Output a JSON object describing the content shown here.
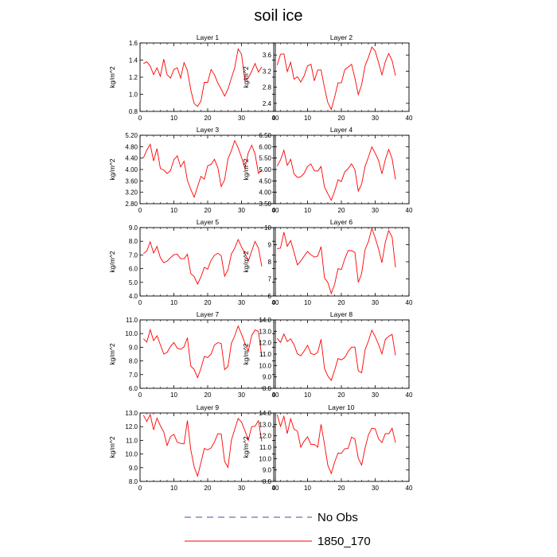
{
  "title": "soil ice",
  "legend": [
    {
      "label": "No Obs",
      "color": "#4a4a9a",
      "dash": "8,6"
    },
    {
      "label": "1850_170",
      "color": "#ff0000",
      "dash": ""
    }
  ],
  "chart_data": [
    {
      "type": "line",
      "title": "Layer 1",
      "ylabel": "kg/m^2",
      "xlim": [
        0,
        40
      ],
      "ylim": [
        0.8,
        1.6
      ],
      "yticks": [
        "0.8",
        "1.0",
        "1.2",
        "1.4",
        "1.6"
      ],
      "xticks": [
        "0",
        "10",
        "20",
        "30",
        "40"
      ],
      "series": [
        {
          "name": "1850_170",
          "color": "#ff0000",
          "x": [
            1,
            2,
            3,
            4,
            5,
            6,
            7,
            8,
            9,
            10,
            11,
            12,
            13,
            14,
            15,
            16,
            17,
            18,
            19,
            20,
            21,
            22,
            23,
            24,
            25,
            26,
            27,
            28,
            29,
            30,
            31,
            32,
            33,
            34,
            35,
            36
          ],
          "y": [
            1.36,
            1.38,
            1.33,
            1.23,
            1.31,
            1.21,
            1.41,
            1.23,
            1.19,
            1.29,
            1.31,
            1.19,
            1.37,
            1.28,
            1.05,
            0.89,
            0.86,
            0.92,
            1.14,
            1.14,
            1.29,
            1.23,
            1.13,
            1.06,
            0.98,
            1.06,
            1.19,
            1.31,
            1.53,
            1.47,
            1.16,
            1.19,
            1.27,
            1.36,
            1.26,
            1.32
          ]
        }
      ]
    },
    {
      "type": "line",
      "title": "Layer 2",
      "ylabel": "kg/m^2",
      "xlim": [
        0,
        40
      ],
      "ylim": [
        2.2,
        3.9
      ],
      "yticks": [
        "2.4",
        "2.8",
        "3.2",
        "3.6"
      ],
      "xticks": [
        "0",
        "10",
        "20",
        "30",
        "40"
      ],
      "series": [
        {
          "name": "1850_170",
          "color": "#ff0000",
          "x": [
            1,
            2,
            3,
            4,
            5,
            6,
            7,
            8,
            9,
            10,
            11,
            12,
            13,
            14,
            15,
            16,
            17,
            18,
            19,
            20,
            21,
            22,
            23,
            24,
            25,
            26,
            27,
            28,
            29,
            30,
            31,
            32,
            33,
            34,
            35,
            36
          ],
          "y": [
            3.35,
            3.62,
            3.63,
            3.19,
            3.42,
            3.0,
            3.06,
            2.93,
            3.09,
            3.33,
            3.37,
            2.96,
            3.23,
            3.23,
            2.79,
            2.42,
            2.25,
            2.55,
            2.91,
            2.91,
            3.24,
            3.3,
            3.37,
            3.03,
            2.62,
            2.86,
            3.33,
            3.54,
            3.8,
            3.7,
            3.41,
            3.11,
            3.44,
            3.64,
            3.46,
            3.09
          ]
        }
      ]
    },
    {
      "type": "line",
      "title": "Layer 3",
      "ylabel": "kg/m^2",
      "xlim": [
        0,
        40
      ],
      "ylim": [
        2.8,
        5.2
      ],
      "yticks": [
        "2.80",
        "3.20",
        "3.60",
        "4.00",
        "4.40",
        "4.80",
        "5.20"
      ],
      "xticks": [
        "0",
        "10",
        "20",
        "30",
        "40"
      ],
      "series": [
        {
          "name": "1850_170",
          "color": "#ff0000",
          "x": [
            1,
            2,
            3,
            4,
            5,
            6,
            7,
            8,
            9,
            10,
            11,
            12,
            13,
            14,
            15,
            16,
            17,
            18,
            19,
            20,
            21,
            22,
            23,
            24,
            25,
            26,
            27,
            28,
            29,
            30,
            31,
            32,
            33,
            34,
            35,
            36
          ],
          "y": [
            4.41,
            4.68,
            4.88,
            4.3,
            4.73,
            4.04,
            3.98,
            3.86,
            3.96,
            4.34,
            4.48,
            4.09,
            4.29,
            3.62,
            3.3,
            3.03,
            3.4,
            3.76,
            3.66,
            4.13,
            4.18,
            4.36,
            4.06,
            3.4,
            3.64,
            4.37,
            4.66,
            5.01,
            4.76,
            4.43,
            4.04,
            4.58,
            4.85,
            4.55,
            3.86,
            3.98
          ]
        }
      ]
    },
    {
      "type": "line",
      "title": "Layer 4",
      "ylabel": "kg/m^2",
      "xlim": [
        0,
        40
      ],
      "ylim": [
        3.5,
        6.5
      ],
      "yticks": [
        "3.50",
        "4.00",
        "4.50",
        "5.00",
        "5.50",
        "6.00",
        "6.50"
      ],
      "xticks": [
        "0",
        "10",
        "20",
        "30",
        "40"
      ],
      "series": [
        {
          "name": "1850_170",
          "color": "#ff0000",
          "x": [
            1,
            2,
            3,
            4,
            5,
            6,
            7,
            8,
            9,
            10,
            11,
            12,
            13,
            14,
            15,
            16,
            17,
            18,
            19,
            20,
            21,
            22,
            23,
            24,
            25,
            26,
            27,
            28,
            29,
            30,
            31,
            32,
            33,
            34,
            35,
            36
          ],
          "y": [
            5.15,
            5.42,
            5.84,
            5.18,
            5.45,
            4.8,
            4.65,
            4.68,
            4.84,
            5.14,
            5.24,
            4.94,
            4.93,
            5.13,
            4.23,
            3.94,
            3.65,
            4.04,
            4.55,
            4.47,
            4.9,
            5.04,
            5.25,
            4.99,
            4.05,
            4.36,
            5.14,
            5.54,
            5.99,
            5.72,
            5.39,
            4.81,
            5.44,
            5.88,
            5.47,
            4.56
          ]
        }
      ]
    },
    {
      "type": "line",
      "title": "Layer 5",
      "ylabel": "kg/m^2",
      "xlim": [
        0,
        40
      ],
      "ylim": [
        4.0,
        9.0
      ],
      "yticks": [
        "4.0",
        "5.0",
        "6.0",
        "7.0",
        "8.0",
        "9.0"
      ],
      "xticks": [
        "0",
        "10",
        "20",
        "30",
        "40"
      ],
      "series": [
        {
          "name": "1850_170",
          "color": "#ff0000",
          "x": [
            1,
            2,
            3,
            4,
            5,
            6,
            7,
            8,
            9,
            10,
            11,
            12,
            13,
            14,
            15,
            16,
            17,
            18,
            19,
            20,
            21,
            22,
            23,
            24,
            25,
            26,
            27,
            28,
            29,
            30,
            31,
            32,
            33,
            34,
            35,
            36
          ],
          "y": [
            7.1,
            7.29,
            7.96,
            7.14,
            7.62,
            6.8,
            6.43,
            6.55,
            6.8,
            7.02,
            7.05,
            6.73,
            6.72,
            7.05,
            5.64,
            5.41,
            4.87,
            5.39,
            6.1,
            5.96,
            6.62,
            6.97,
            7.12,
            6.95,
            5.45,
            5.91,
            7.07,
            7.5,
            8.13,
            7.58,
            7.14,
            6.54,
            7.28,
            7.99,
            7.5,
            6.16
          ]
        }
      ]
    },
    {
      "type": "line",
      "title": "Layer 6",
      "ylabel": "kg/m^2",
      "xlim": [
        0,
        40
      ],
      "ylim": [
        6,
        10
      ],
      "yticks": [
        "6",
        "7",
        "8",
        "9",
        "10"
      ],
      "xticks": [
        "0",
        "10",
        "20",
        "30",
        "40"
      ],
      "series": [
        {
          "name": "1850_170",
          "color": "#ff0000",
          "x": [
            1,
            2,
            3,
            4,
            5,
            6,
            7,
            8,
            9,
            10,
            11,
            12,
            13,
            14,
            15,
            16,
            17,
            18,
            19,
            20,
            21,
            22,
            23,
            24,
            25,
            26,
            27,
            28,
            29,
            30,
            31,
            32,
            33,
            34,
            35,
            36
          ],
          "y": [
            8.76,
            8.8,
            9.73,
            8.91,
            9.24,
            8.56,
            7.82,
            8.04,
            8.34,
            8.6,
            8.41,
            8.28,
            8.33,
            8.89,
            7.06,
            6.79,
            6.15,
            6.68,
            7.6,
            7.55,
            8.17,
            8.65,
            8.65,
            8.55,
            6.79,
            7.32,
            8.71,
            9.18,
            9.96,
            9.4,
            8.74,
            7.95,
            9.16,
            9.83,
            9.44,
            7.67
          ]
        }
      ]
    },
    {
      "type": "line",
      "title": "Layer 7",
      "ylabel": "kg/m^2",
      "xlim": [
        0,
        40
      ],
      "ylim": [
        6.0,
        11.0
      ],
      "yticks": [
        "6.0",
        "7.0",
        "8.0",
        "9.0",
        "10.0",
        "11.0"
      ],
      "xticks": [
        "0",
        "10",
        "20",
        "30",
        "40"
      ],
      "series": [
        {
          "name": "1850_170",
          "color": "#ff0000",
          "x": [
            1,
            2,
            3,
            4,
            5,
            6,
            7,
            8,
            9,
            10,
            11,
            12,
            13,
            14,
            15,
            16,
            17,
            18,
            19,
            20,
            21,
            22,
            23,
            24,
            25,
            26,
            27,
            28,
            29,
            30,
            31,
            32,
            33,
            34,
            35,
            36
          ],
          "y": [
            9.62,
            9.38,
            10.28,
            9.49,
            9.84,
            9.19,
            8.5,
            8.62,
            9.06,
            9.35,
            8.93,
            8.85,
            9.03,
            9.69,
            7.63,
            7.38,
            6.78,
            7.45,
            8.33,
            8.25,
            8.5,
            9.17,
            9.34,
            9.28,
            7.37,
            7.6,
            9.29,
            9.84,
            10.56,
            9.95,
            9.29,
            8.7,
            9.86,
            10.27,
            10.16,
            8.3
          ]
        }
      ]
    },
    {
      "type": "line",
      "title": "Layer 8",
      "ylabel": "kg/m^2",
      "xlim": [
        0,
        40
      ],
      "ylim": [
        8.0,
        14.0
      ],
      "yticks": [
        "8.0",
        "9.0",
        "10.0",
        "11.0",
        "12.0",
        "13.0",
        "14.0"
      ],
      "xticks": [
        "0",
        "10",
        "20",
        "30",
        "40"
      ],
      "series": [
        {
          "name": "1850_170",
          "color": "#ff0000",
          "x": [
            1,
            2,
            3,
            4,
            5,
            6,
            7,
            8,
            9,
            10,
            11,
            12,
            13,
            14,
            15,
            16,
            17,
            18,
            19,
            20,
            21,
            22,
            23,
            24,
            25,
            26,
            27,
            28,
            29,
            30,
            31,
            32,
            33,
            34,
            35,
            36
          ],
          "y": [
            12.39,
            12.03,
            12.76,
            12.1,
            12.34,
            11.83,
            11.02,
            10.85,
            11.28,
            11.77,
            11.05,
            10.95,
            11.16,
            12.3,
            9.74,
            9.08,
            8.7,
            9.58,
            10.61,
            10.5,
            10.7,
            11.24,
            11.61,
            11.62,
            9.53,
            9.36,
            11.37,
            12.15,
            13.09,
            12.54,
            11.84,
            11.02,
            12.29,
            12.56,
            12.73,
            10.88
          ]
        }
      ]
    },
    {
      "type": "line",
      "title": "Layer 9",
      "ylabel": "kg/m^2",
      "xlim": [
        0,
        40
      ],
      "ylim": [
        8.0,
        13.0
      ],
      "yticks": [
        "8.0",
        "9.0",
        "10.0",
        "11.0",
        "12.0",
        "13.0"
      ],
      "xticks": [
        "0",
        "10",
        "20",
        "30",
        "40"
      ],
      "series": [
        {
          "name": "1850_170",
          "color": "#ff0000",
          "x": [
            1,
            2,
            3,
            4,
            5,
            6,
            7,
            8,
            9,
            10,
            11,
            12,
            13,
            14,
            15,
            16,
            17,
            18,
            19,
            20,
            21,
            22,
            23,
            24,
            25,
            26,
            27,
            28,
            29,
            30,
            31,
            32,
            33,
            34,
            35,
            36
          ],
          "y": [
            12.84,
            12.37,
            12.89,
            11.77,
            12.63,
            12.07,
            11.61,
            10.62,
            11.27,
            11.44,
            10.86,
            10.78,
            10.74,
            12.44,
            10.31,
            9.07,
            8.39,
            9.36,
            10.41,
            10.3,
            10.45,
            10.89,
            11.48,
            11.47,
            9.46,
            9.02,
            11.02,
            11.81,
            12.6,
            12.34,
            11.71,
            11.0,
            12.0,
            12.03,
            12.44,
            10.92
          ]
        }
      ]
    },
    {
      "type": "line",
      "title": "Layer 10",
      "ylabel": "kg/m^2",
      "xlim": [
        0,
        40
      ],
      "ylim": [
        8.0,
        14.0
      ],
      "yticks": [
        "8.0",
        "9.0",
        "10.0",
        "11.0",
        "12.0",
        "13.0",
        "14.0"
      ],
      "xticks": [
        "0",
        "10",
        "20",
        "30",
        "40"
      ],
      "series": [
        {
          "name": "1850_170",
          "color": "#ff0000",
          "x": [
            1,
            2,
            3,
            4,
            5,
            6,
            7,
            8,
            9,
            10,
            11,
            12,
            13,
            14,
            15,
            16,
            17,
            18,
            19,
            20,
            21,
            22,
            23,
            24,
            25,
            26,
            27,
            28,
            29,
            30,
            31,
            32,
            33,
            34,
            35,
            36
          ],
          "y": [
            13.85,
            12.83,
            13.7,
            12.19,
            13.49,
            12.59,
            12.4,
            11.0,
            11.54,
            11.91,
            11.23,
            11.25,
            11.0,
            13.0,
            11.24,
            9.42,
            8.7,
            9.68,
            10.48,
            10.47,
            10.87,
            10.89,
            11.88,
            11.72,
            10.02,
            9.43,
            10.93,
            12.08,
            12.67,
            12.61,
            11.73,
            11.4,
            12.2,
            12.18,
            12.66,
            11.4
          ]
        }
      ]
    }
  ]
}
